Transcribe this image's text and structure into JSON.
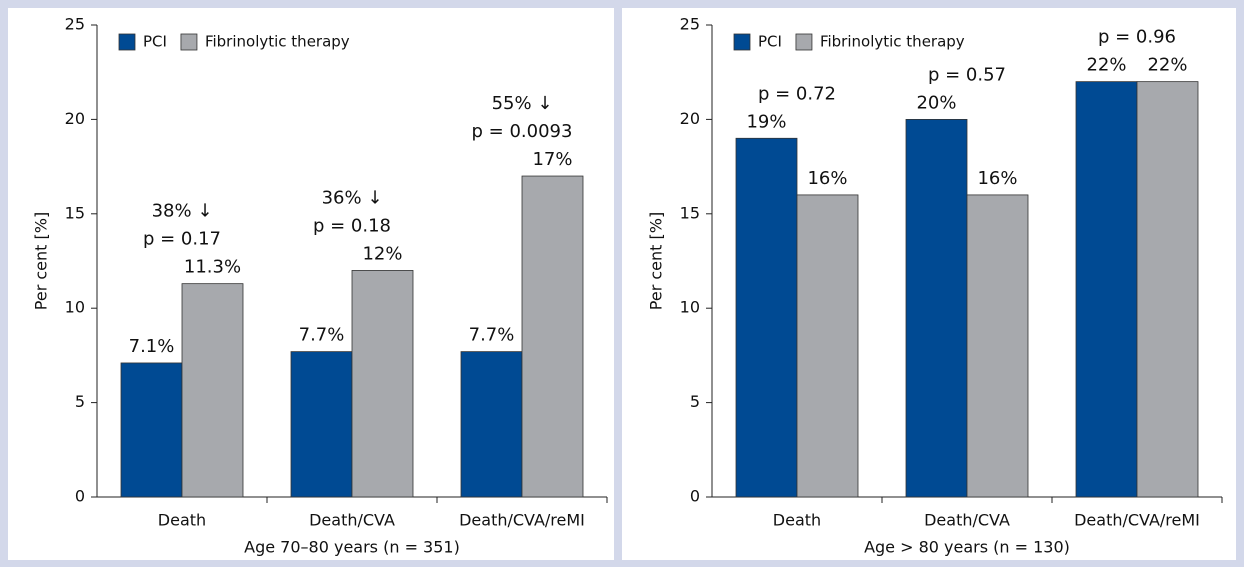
{
  "chart_data": [
    {
      "type": "bar",
      "xlabel": "Age 70–80 years (n = 351)",
      "ylabel": "Per cent [%]",
      "categories": [
        "Death",
        "Death/CVA",
        "Death/CVA/reMI"
      ],
      "series": [
        {
          "name": "PCI",
          "color": "#004a93",
          "values": [
            7.1,
            7.7,
            7.7
          ],
          "value_labels": [
            "7.1%",
            "7.7%",
            "7.7%"
          ]
        },
        {
          "name": "Fibrinolytic therapy",
          "color": "#a7a9ad",
          "values": [
            11.3,
            12,
            17
          ],
          "value_labels": [
            "11.3%",
            "12%",
            "17%"
          ]
        }
      ],
      "annotations": [
        [
          "38% ↓",
          "p = 0.17"
        ],
        [
          "36% ↓",
          "p = 0.18"
        ],
        [
          "55% ↓",
          "p = 0.0093"
        ]
      ],
      "ylim": [
        0,
        25
      ],
      "yticks": [
        0,
        5,
        10,
        15,
        20,
        25
      ],
      "legend": "upper left"
    },
    {
      "type": "bar",
      "xlabel": "Age > 80 years (n = 130)",
      "ylabel": "Per cent [%]",
      "categories": [
        "Death",
        "Death/CVA",
        "Death/CVA/reMI"
      ],
      "series": [
        {
          "name": "PCI",
          "color": "#004a93",
          "values": [
            19,
            20,
            22
          ],
          "value_labels": [
            "19%",
            "20%",
            "22%"
          ]
        },
        {
          "name": "Fibrinolytic therapy",
          "color": "#a7a9ad",
          "values": [
            16,
            16,
            22
          ],
          "value_labels": [
            "16%",
            "16%",
            "22%"
          ]
        }
      ],
      "annotations": [
        [
          "p = 0.72"
        ],
        [
          "p = 0.57"
        ],
        [
          "p = 0.96"
        ]
      ],
      "ylim": [
        0,
        25
      ],
      "yticks": [
        0,
        5,
        10,
        15,
        20,
        25
      ],
      "legend": "upper left"
    }
  ]
}
